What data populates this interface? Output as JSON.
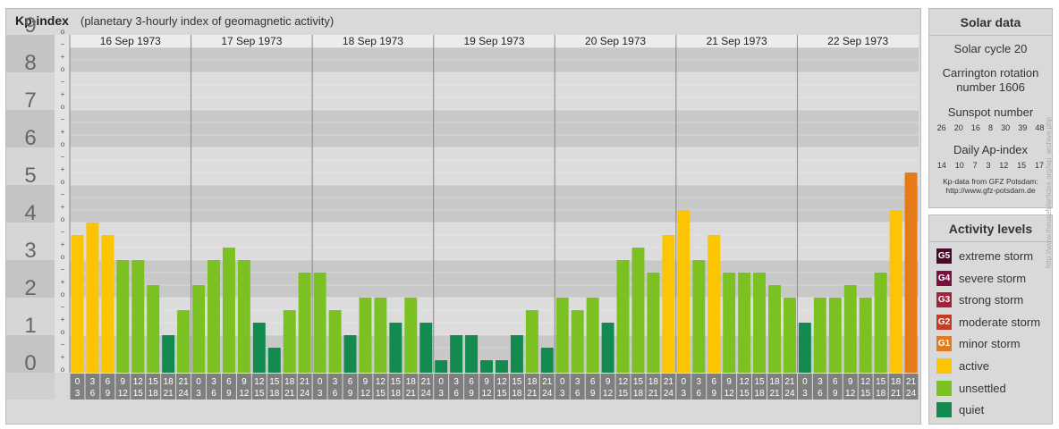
{
  "header": {
    "title": "Kp-index",
    "subtitle": "(planetary 3-hourly index of geomagnetic activity)"
  },
  "chart_data": {
    "type": "bar",
    "title": "Kp-index",
    "subtitle": "(planetary 3-hourly index of geomagnetic activity)",
    "ylim": [
      0,
      9
    ],
    "y_ticks": [
      "0",
      "1",
      "2",
      "3",
      "4",
      "5",
      "6",
      "7",
      "8",
      "9"
    ],
    "minor_tick_labels": [
      "o",
      "+",
      "−"
    ],
    "days": [
      "16 Sep 1973",
      "17 Sep 1973",
      "18 Sep 1973",
      "19 Sep 1973",
      "20 Sep 1973",
      "21 Sep 1973",
      "22 Sep 1973"
    ],
    "hour_start_labels": [
      "0",
      "3",
      "6",
      "9",
      "12",
      "15",
      "18",
      "21"
    ],
    "hour_end_labels": [
      "3",
      "6",
      "9",
      "12",
      "15",
      "18",
      "21",
      "24"
    ],
    "values": [
      [
        3.667,
        4.0,
        3.667,
        3.0,
        3.0,
        2.333,
        1.0,
        1.667
      ],
      [
        2.333,
        3.0,
        3.333,
        3.0,
        1.333,
        0.667,
        1.667,
        2.667
      ],
      [
        2.667,
        1.667,
        1.0,
        2.0,
        2.0,
        1.333,
        2.0,
        1.333
      ],
      [
        0.333,
        1.0,
        1.0,
        0.333,
        0.333,
        1.0,
        1.667,
        0.667
      ],
      [
        2.0,
        1.667,
        2.0,
        1.333,
        3.0,
        3.333,
        2.667,
        3.667
      ],
      [
        4.333,
        3.0,
        3.667,
        2.667,
        2.667,
        2.667,
        2.333,
        2.0
      ],
      [
        1.333,
        2.0,
        2.0,
        2.333,
        2.0,
        2.667,
        4.333,
        5.333
      ]
    ],
    "colors": {
      "quiet": "#138a4f",
      "unsettled": "#7ac121",
      "active": "#fcc402",
      "g1": "#e47a18",
      "g2": "#c63b23",
      "g3": "#a3223f",
      "g4": "#7a1040",
      "g5": "#4a0a2a"
    }
  },
  "solar": {
    "title": "Solar data",
    "cycle": "Solar cycle 20",
    "carrington_line1": "Carrington rotation",
    "carrington_line2": "number 1606",
    "sunspot_title": "Sunspot number",
    "sunspots": [
      "26",
      "20",
      "16",
      "8",
      "30",
      "39",
      "48"
    ],
    "ap_title": "Daily Ap-index",
    "ap": [
      "14",
      "10",
      "7",
      "3",
      "12",
      "15",
      "17"
    ],
    "credit_line1": "Kp-data from GFZ Potsdam:",
    "credit_line2": "http://www.gfz-potsdam.de"
  },
  "activity": {
    "title": "Activity levels",
    "items": [
      {
        "badge": "G5",
        "label": "extreme storm",
        "color": "#4a0a2a"
      },
      {
        "badge": "G4",
        "label": "severe storm",
        "color": "#7a1040"
      },
      {
        "badge": "G3",
        "label": "strong storm",
        "color": "#a3223f"
      },
      {
        "badge": "G2",
        "label": "moderate storm",
        "color": "#c63b23"
      },
      {
        "badge": "G1",
        "label": "minor storm",
        "color": "#e47a18"
      },
      {
        "badge": "",
        "label": "active",
        "color": "#fcc402"
      },
      {
        "badge": "",
        "label": "unsettled",
        "color": "#7ac121"
      },
      {
        "badge": "",
        "label": "quiet",
        "color": "#138a4f"
      }
    ]
  },
  "side_caption": "http://www.theusefularticles.org/wp_archive.php"
}
